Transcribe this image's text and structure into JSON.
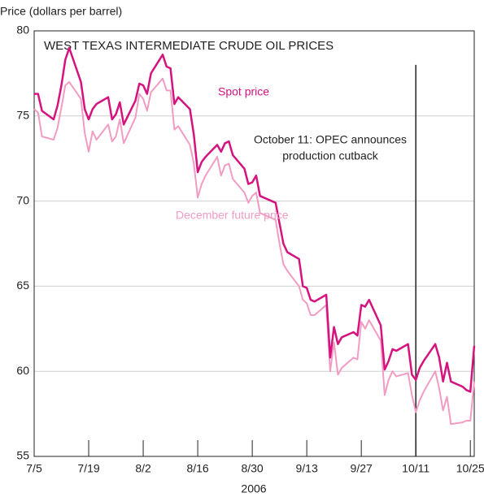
{
  "chart_data": {
    "type": "line",
    "title": "WEST TEXAS INTERMEDIATE CRUDE OIL PRICES",
    "y_label": "Price (dollars per barrel)",
    "x_label": "2006",
    "x": [
      "2006-07-05",
      "2006-07-06",
      "2006-07-07",
      "2006-07-10",
      "2006-07-11",
      "2006-07-12",
      "2006-07-13",
      "2006-07-14",
      "2006-07-17",
      "2006-07-18",
      "2006-07-19",
      "2006-07-20",
      "2006-07-21",
      "2006-07-24",
      "2006-07-25",
      "2006-07-26",
      "2006-07-27",
      "2006-07-28",
      "2006-07-31",
      "2006-08-01",
      "2006-08-02",
      "2006-08-03",
      "2006-08-04",
      "2006-08-07",
      "2006-08-08",
      "2006-08-09",
      "2006-08-10",
      "2006-08-11",
      "2006-08-14",
      "2006-08-15",
      "2006-08-16",
      "2006-08-17",
      "2006-08-18",
      "2006-08-21",
      "2006-08-22",
      "2006-08-23",
      "2006-08-24",
      "2006-08-25",
      "2006-08-28",
      "2006-08-29",
      "2006-08-30",
      "2006-08-31",
      "2006-09-01",
      "2006-09-05",
      "2006-09-06",
      "2006-09-07",
      "2006-09-08",
      "2006-09-11",
      "2006-09-12",
      "2006-09-13",
      "2006-09-14",
      "2006-09-15",
      "2006-09-18",
      "2006-09-19",
      "2006-09-20",
      "2006-09-21",
      "2006-09-22",
      "2006-09-25",
      "2006-09-26",
      "2006-09-27",
      "2006-09-28",
      "2006-09-29",
      "2006-10-02",
      "2006-10-03",
      "2006-10-04",
      "2006-10-05",
      "2006-10-06",
      "2006-10-09",
      "2006-10-10",
      "2006-10-11",
      "2006-10-12",
      "2006-10-13",
      "2006-10-16",
      "2006-10-17",
      "2006-10-18",
      "2006-10-19",
      "2006-10-20",
      "2006-10-23",
      "2006-10-24",
      "2006-10-25",
      "2006-10-26"
    ],
    "series": [
      {
        "name": "December future price",
        "color": "#f29cc3",
        "values": [
          75.4,
          75.2,
          73.8,
          73.6,
          74.3,
          75.5,
          76.8,
          77.0,
          76.0,
          74.0,
          72.9,
          74.1,
          73.6,
          74.5,
          73.5,
          73.8,
          74.8,
          73.4,
          74.9,
          76.3,
          76.0,
          75.3,
          76.4,
          77.2,
          76.5,
          76.5,
          74.2,
          74.4,
          73.3,
          72.2,
          70.2,
          71.0,
          71.5,
          72.6,
          71.5,
          72.1,
          72.2,
          71.3,
          70.5,
          69.9,
          70.3,
          70.5,
          69.3,
          68.9,
          67.5,
          66.3,
          65.9,
          65.0,
          64.2,
          64.0,
          63.3,
          63.3,
          63.9,
          60.0,
          61.7,
          59.8,
          60.2,
          60.8,
          60.7,
          62.9,
          62.5,
          63.0,
          61.8,
          58.6,
          59.5,
          60.0,
          59.7,
          59.9,
          58.6,
          57.6,
          58.3,
          58.8,
          60.0,
          59.0,
          57.7,
          58.5,
          56.9,
          57.0,
          57.1,
          57.1,
          59.4
        ]
      },
      {
        "name": "Spot price",
        "color": "#d6127f",
        "values": [
          76.3,
          76.3,
          75.3,
          74.8,
          75.6,
          76.8,
          78.3,
          79.0,
          77.0,
          75.4,
          74.8,
          75.4,
          75.7,
          76.1,
          74.8,
          75.1,
          75.8,
          74.5,
          75.9,
          76.9,
          76.8,
          76.3,
          77.5,
          78.6,
          77.9,
          77.8,
          75.7,
          76.1,
          75.4,
          73.9,
          71.7,
          72.3,
          72.6,
          73.3,
          72.9,
          73.4,
          73.5,
          72.7,
          71.9,
          71.0,
          71.1,
          71.5,
          70.3,
          69.9,
          68.7,
          67.5,
          67.0,
          66.6,
          65.0,
          64.9,
          64.2,
          64.1,
          64.5,
          60.8,
          62.6,
          61.6,
          62.0,
          62.3,
          62.1,
          63.9,
          63.8,
          64.2,
          62.7,
          60.1,
          60.6,
          61.3,
          61.2,
          61.6,
          59.8,
          59.5,
          60.2,
          60.6,
          61.6,
          60.8,
          59.4,
          60.5,
          59.4,
          59.1,
          58.9,
          58.8,
          61.5
        ]
      }
    ],
    "annotation": {
      "lines": [
        "October 11: OPEC announces",
        "production cutback"
      ],
      "x": "2006-10-11",
      "ymax": 78
    },
    "xlim": [
      "2006-07-05",
      "2006-10-26"
    ],
    "xticks": [
      {
        "value": "2006-07-05",
        "label": "7/5"
      },
      {
        "value": "2006-07-19",
        "label": "7/19"
      },
      {
        "value": "2006-08-02",
        "label": "8/2"
      },
      {
        "value": "2006-08-16",
        "label": "8/16"
      },
      {
        "value": "2006-08-30",
        "label": "8/30"
      },
      {
        "value": "2006-09-13",
        "label": "9/13"
      },
      {
        "value": "2006-09-27",
        "label": "9/27"
      },
      {
        "value": "2006-10-11",
        "label": "10/11"
      },
      {
        "value": "2006-10-25",
        "label": "10/25"
      }
    ],
    "ylim": [
      55,
      80
    ],
    "yticks": [
      55,
      60,
      65,
      70,
      75,
      80
    ],
    "grid": true
  }
}
